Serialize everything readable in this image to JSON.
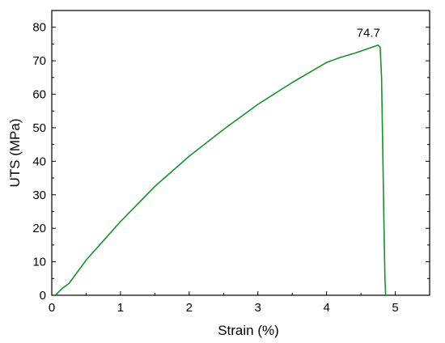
{
  "chart_data": {
    "type": "line",
    "title": "",
    "xlabel": "Strain (%)",
    "ylabel": "UTS (MPa)",
    "xlim": [
      0,
      5.5
    ],
    "ylim": [
      0,
      85
    ],
    "x_ticks": [
      0,
      1,
      2,
      3,
      4,
      5
    ],
    "y_ticks": [
      0,
      10,
      20,
      30,
      40,
      50,
      60,
      70,
      80
    ],
    "x_tick_labels": [
      "0",
      "1",
      "2",
      "3",
      "4",
      "5"
    ],
    "y_tick_labels": [
      "0",
      "10",
      "20",
      "30",
      "40",
      "50",
      "60",
      "70",
      "80"
    ],
    "grid": false,
    "legend": "none",
    "series": [
      {
        "color": "#1a8f2e",
        "x": [
          0.05,
          0.1,
          0.15,
          0.25,
          0.5,
          1.0,
          1.5,
          2.0,
          2.5,
          3.0,
          3.5,
          4.0,
          4.2,
          4.4,
          4.6,
          4.75,
          4.78,
          4.8,
          4.82,
          4.84,
          4.85,
          4.86
        ],
        "y": [
          0,
          1,
          2,
          3.5,
          10.5,
          22,
          32.5,
          41.5,
          49.5,
          57,
          63.5,
          69.5,
          71,
          72.2,
          73.6,
          74.7,
          74,
          65,
          40,
          15,
          5,
          0
        ]
      }
    ],
    "annotations": [
      {
        "text": "74.7",
        "x": 4.75,
        "y": 74.7
      }
    ]
  }
}
